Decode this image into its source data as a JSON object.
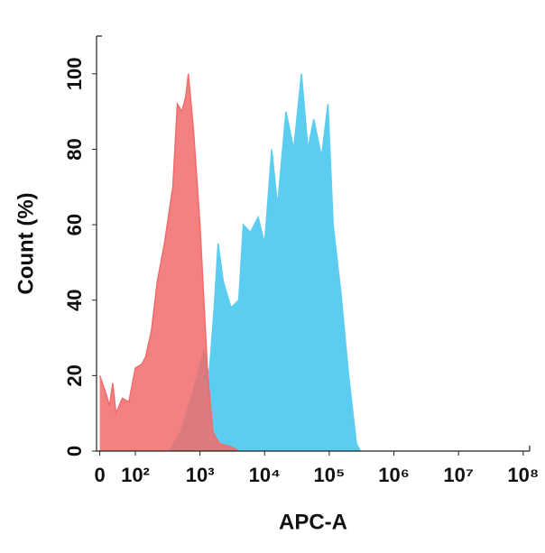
{
  "chart_data": {
    "type": "area",
    "xlabel": "APC-A",
    "ylabel": "Count  (%)",
    "xlim": [
      1.4,
      8.1
    ],
    "ylim": [
      0,
      110
    ],
    "xticks": [
      {
        "value": 1.45,
        "label": "0"
      },
      {
        "value": 2,
        "label": "10²"
      },
      {
        "value": 3,
        "label": "10³"
      },
      {
        "value": 4,
        "label": "10⁴"
      },
      {
        "value": 5,
        "label": "10⁵"
      },
      {
        "value": 6,
        "label": "10⁶"
      },
      {
        "value": 7,
        "label": "10⁷"
      },
      {
        "value": 8,
        "label": "10⁸"
      }
    ],
    "yticks": [
      0,
      20,
      40,
      60,
      80,
      100
    ],
    "series": [
      {
        "color": "#5bcdf0",
        "x": [
          2.52,
          2.7,
          2.88,
          3.06,
          3.14,
          3.22,
          3.28,
          3.36,
          3.48,
          3.6,
          3.67,
          3.78,
          3.9,
          4.0,
          4.11,
          4.2,
          4.33,
          4.45,
          4.57,
          4.67,
          4.76,
          4.88,
          4.98,
          5.06,
          5.18,
          5.3,
          5.42,
          5.48
        ],
        "values": [
          0,
          5,
          15,
          27,
          20,
          38,
          55,
          45,
          38,
          40,
          60,
          58,
          62,
          55,
          80,
          65,
          90,
          80,
          100,
          80,
          88,
          78,
          92,
          60,
          42,
          20,
          2,
          0
        ]
      },
      {
        "color": "#f26b6b",
        "x": [
          1.45,
          1.55,
          1.6,
          1.65,
          1.7,
          1.8,
          1.9,
          2.0,
          2.1,
          2.16,
          2.25,
          2.34,
          2.45,
          2.58,
          2.65,
          2.72,
          2.78,
          2.82,
          2.9,
          3.0,
          3.06,
          3.12,
          3.2,
          3.3,
          3.5,
          3.6
        ],
        "values": [
          20,
          15,
          12,
          18,
          10,
          14,
          13,
          22,
          23,
          25,
          32,
          45,
          55,
          70,
          92,
          90,
          94,
          100,
          85,
          60,
          40,
          20,
          5,
          2,
          1,
          0
        ]
      }
    ]
  }
}
